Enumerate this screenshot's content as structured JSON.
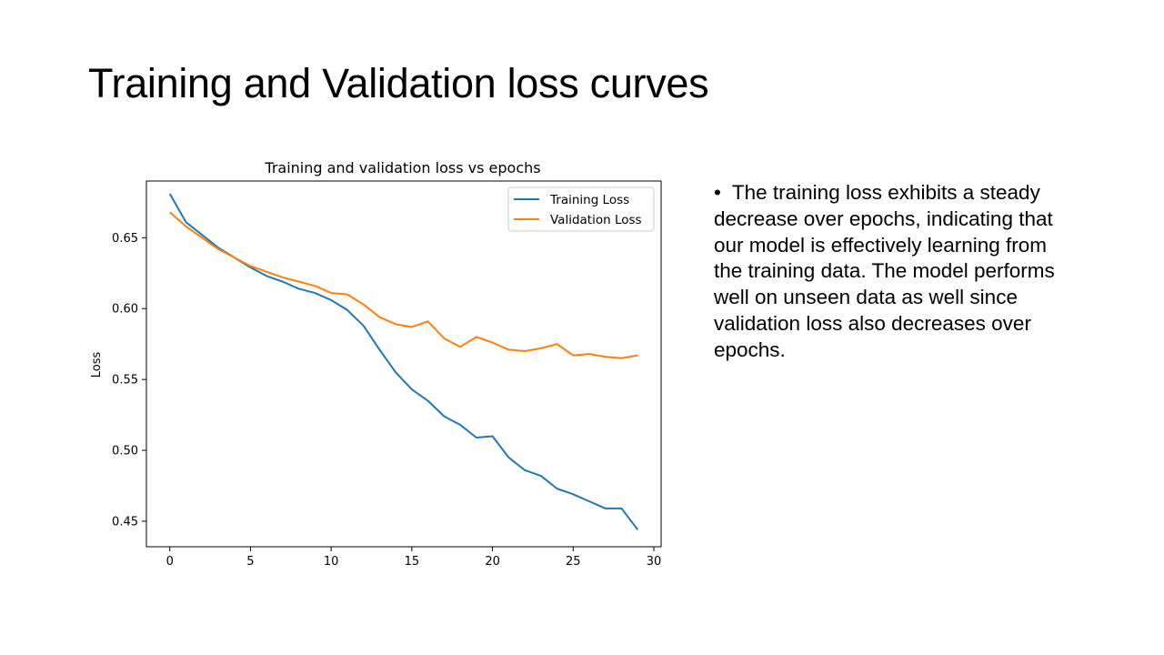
{
  "slide": {
    "title": "Training and Validation loss curves",
    "bullets": [
      "The training loss exhibits a steady decrease over epochs, indicating that our model is effectively learning from the training data. The model performs well on unseen data as well since validation loss also decreases over epochs."
    ],
    "bullet_symbol": "•"
  },
  "chart_data": {
    "type": "line",
    "title": "Training and validation loss vs epochs",
    "xlabel": "",
    "ylabel": "Loss",
    "xlim": [
      -1.45,
      30.45
    ],
    "ylim": [
      0.432,
      0.69
    ],
    "x_ticks": [
      0,
      5,
      10,
      15,
      20,
      25,
      30
    ],
    "y_ticks": [
      0.45,
      0.5,
      0.55,
      0.6,
      0.65
    ],
    "y_tick_labels": [
      "0.45",
      "0.50",
      "0.55",
      "0.60",
      "0.65"
    ],
    "x_tick_labels": [
      "0",
      "5",
      "10",
      "15",
      "20",
      "25",
      "30"
    ],
    "grid": false,
    "legend_position": "top-right",
    "x": [
      0,
      1,
      2,
      3,
      4,
      5,
      6,
      7,
      8,
      9,
      10,
      11,
      12,
      13,
      14,
      15,
      16,
      17,
      18,
      19,
      20,
      21,
      22,
      23,
      24,
      25,
      26,
      27,
      28,
      29
    ],
    "series": [
      {
        "name": "Training Loss",
        "color": "#1f77b4",
        "values": [
          0.681,
          0.661,
          0.652,
          0.643,
          0.636,
          0.629,
          0.623,
          0.619,
          0.614,
          0.611,
          0.606,
          0.599,
          0.588,
          0.571,
          0.555,
          0.543,
          0.535,
          0.524,
          0.518,
          0.509,
          0.51,
          0.495,
          0.486,
          0.482,
          0.473,
          0.469,
          0.464,
          0.459,
          0.459,
          0.444
        ]
      },
      {
        "name": "Validation Loss",
        "color": "#ff7f0e",
        "values": [
          0.668,
          0.658,
          0.65,
          0.642,
          0.636,
          0.63,
          0.626,
          0.622,
          0.619,
          0.616,
          0.611,
          0.61,
          0.603,
          0.594,
          0.589,
          0.587,
          0.591,
          0.579,
          0.573,
          0.58,
          0.576,
          0.571,
          0.57,
          0.572,
          0.575,
          0.567,
          0.568,
          0.566,
          0.565,
          0.567
        ]
      }
    ]
  }
}
